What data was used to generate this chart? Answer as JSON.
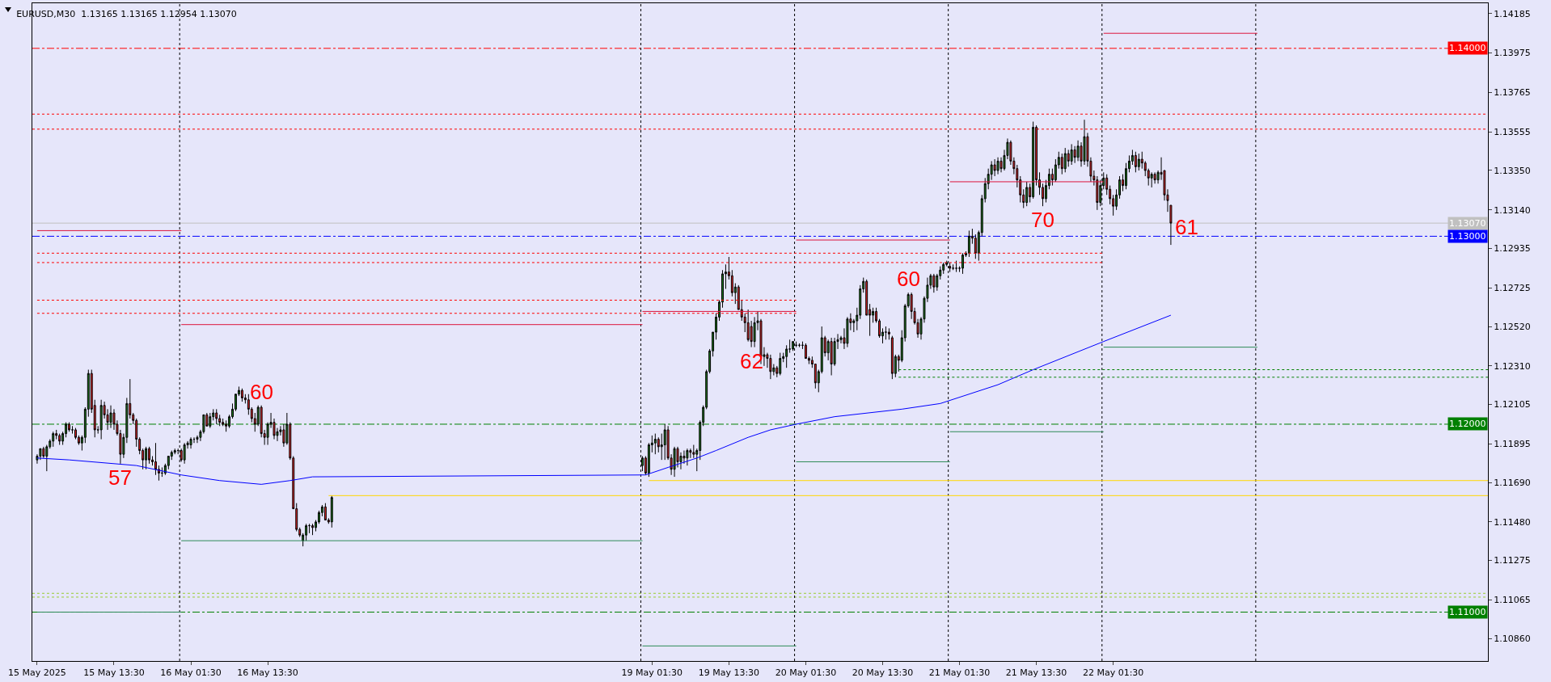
{
  "chart_data": {
    "type": "candlestick",
    "title": "EURUSD,M30  1.13165 1.13165 1.12954 1.13070",
    "x": [
      "2025-05-15T01:30",
      "2025-05-15T02:00",
      "2025-05-15T02:30",
      "2025-05-15T03:00",
      "2025-05-15T03:30",
      "2025-05-15T04:00",
      "2025-05-15T04:30",
      "2025-05-15T05:00",
      "2025-05-15T05:30",
      "2025-05-15T06:00",
      "2025-05-15T06:30",
      "2025-05-15T07:00",
      "2025-05-15T07:30",
      "2025-05-15T08:00",
      "2025-05-15T08:30",
      "2025-05-15T09:00",
      "2025-05-15T09:30",
      "2025-05-15T10:00",
      "2025-05-15T10:30",
      "2025-05-15T11:00",
      "2025-05-15T11:30",
      "2025-05-15T12:00",
      "2025-05-15T12:30",
      "2025-05-15T13:00",
      "2025-05-15T13:30",
      "2025-05-15T14:00",
      "2025-05-15T14:30",
      "2025-05-15T15:00",
      "2025-05-15T15:30",
      "2025-05-15T16:00",
      "2025-05-15T16:30",
      "2025-05-15T17:00",
      "2025-05-15T17:30",
      "2025-05-15T18:00",
      "2025-05-15T18:30",
      "2025-05-15T19:00",
      "2025-05-15T19:30",
      "2025-05-15T20:00",
      "2025-05-15T20:30",
      "2025-05-15T21:00",
      "2025-05-15T21:30",
      "2025-05-15T22:00",
      "2025-05-15T22:30",
      "2025-05-15T23:00",
      "2025-05-15T23:30",
      "2025-05-16T00:00",
      "2025-05-16T00:30",
      "2025-05-16T01:00",
      "2025-05-16T01:30",
      "2025-05-16T02:00",
      "2025-05-16T02:30",
      "2025-05-16T03:00",
      "2025-05-16T03:30",
      "2025-05-16T04:00",
      "2025-05-16T04:30",
      "2025-05-16T05:00",
      "2025-05-16T05:30",
      "2025-05-16T06:00",
      "2025-05-16T06:30",
      "2025-05-16T07:00",
      "2025-05-16T07:30",
      "2025-05-16T08:00",
      "2025-05-16T08:30",
      "2025-05-16T09:00",
      "2025-05-16T09:30",
      "2025-05-16T10:00",
      "2025-05-16T10:30",
      "2025-05-16T11:00",
      "2025-05-16T11:30",
      "2025-05-16T12:00",
      "2025-05-16T12:30",
      "2025-05-16T13:00",
      "2025-05-16T13:30",
      "2025-05-16T14:00",
      "2025-05-16T14:30",
      "2025-05-16T15:00",
      "2025-05-16T15:30",
      "2025-05-16T16:00",
      "2025-05-16T16:30",
      "2025-05-16T17:00",
      "2025-05-16T17:30",
      "2025-05-16T18:00",
      "2025-05-16T18:30",
      "2025-05-16T19:00",
      "2025-05-16T19:30",
      "2025-05-16T20:00",
      "2025-05-16T20:30",
      "2025-05-16T21:00",
      "2025-05-16T21:30",
      "2025-05-16T22:00",
      "2025-05-16T22:30",
      "2025-05-16T23:00",
      "2025-05-16T23:30",
      "2025-05-19T00:00",
      "2025-05-19T00:30",
      "2025-05-19T01:00",
      "2025-05-19T01:30",
      "2025-05-19T02:00",
      "2025-05-19T02:30",
      "2025-05-19T03:00",
      "2025-05-19T03:30",
      "2025-05-19T04:00",
      "2025-05-19T04:30",
      "2025-05-19T05:00",
      "2025-05-19T05:30",
      "2025-05-19T06:00",
      "2025-05-19T06:30",
      "2025-05-19T07:00",
      "2025-05-19T07:30",
      "2025-05-19T08:00",
      "2025-05-19T08:30",
      "2025-05-19T09:00",
      "2025-05-19T09:30",
      "2025-05-19T10:00",
      "2025-05-19T10:30",
      "2025-05-19T11:00",
      "2025-05-19T11:30",
      "2025-05-19T12:00",
      "2025-05-19T12:30",
      "2025-05-19T13:00",
      "2025-05-19T13:30",
      "2025-05-19T14:00",
      "2025-05-19T14:30",
      "2025-05-19T15:00",
      "2025-05-19T15:30",
      "2025-05-19T16:00",
      "2025-05-19T16:30",
      "2025-05-19T17:00",
      "2025-05-19T17:30",
      "2025-05-19T18:00",
      "2025-05-19T18:30",
      "2025-05-19T19:00",
      "2025-05-19T19:30",
      "2025-05-19T20:00",
      "2025-05-19T20:30",
      "2025-05-19T21:00",
      "2025-05-19T21:30",
      "2025-05-19T22:00",
      "2025-05-19T22:30",
      "2025-05-19T23:00",
      "2025-05-19T23:30",
      "2025-05-20T00:00",
      "2025-05-20T00:30",
      "2025-05-20T01:00",
      "2025-05-20T01:30",
      "2025-05-20T02:00",
      "2025-05-20T02:30",
      "2025-05-20T03:00",
      "2025-05-20T03:30",
      "2025-05-20T04:00",
      "2025-05-20T04:30",
      "2025-05-20T05:00",
      "2025-05-20T05:30",
      "2025-05-20T06:00",
      "2025-05-20T06:30",
      "2025-05-20T07:00",
      "2025-05-20T07:30",
      "2025-05-20T08:00",
      "2025-05-20T08:30",
      "2025-05-20T09:00",
      "2025-05-20T09:30",
      "2025-05-20T10:00",
      "2025-05-20T10:30",
      "2025-05-20T11:00",
      "2025-05-20T11:30",
      "2025-05-20T12:00",
      "2025-05-20T12:30",
      "2025-05-20T13:00",
      "2025-05-20T13:30",
      "2025-05-20T14:00",
      "2025-05-20T14:30",
      "2025-05-20T15:00",
      "2025-05-20T15:30",
      "2025-05-20T16:00",
      "2025-05-20T16:30",
      "2025-05-20T17:00",
      "2025-05-20T17:30",
      "2025-05-20T18:00",
      "2025-05-20T18:30",
      "2025-05-20T19:00",
      "2025-05-20T19:30",
      "2025-05-20T20:00",
      "2025-05-20T20:30",
      "2025-05-20T21:00",
      "2025-05-20T21:30",
      "2025-05-20T22:00",
      "2025-05-20T22:30",
      "2025-05-20T23:00",
      "2025-05-20T23:30",
      "2025-05-21T00:00",
      "2025-05-21T00:30",
      "2025-05-21T01:00",
      "2025-05-21T01:30",
      "2025-05-21T02:00",
      "2025-05-21T02:30",
      "2025-05-21T03:00",
      "2025-05-21T03:30",
      "2025-05-21T04:00",
      "2025-05-21T04:30",
      "2025-05-21T05:00",
      "2025-05-21T05:30",
      "2025-05-21T06:00",
      "2025-05-21T06:30",
      "2025-05-21T07:00",
      "2025-05-21T07:30",
      "2025-05-21T08:00",
      "2025-05-21T08:30",
      "2025-05-21T09:00",
      "2025-05-21T09:30",
      "2025-05-21T10:00",
      "2025-05-21T10:30",
      "2025-05-21T11:00",
      "2025-05-21T11:30",
      "2025-05-21T12:00",
      "2025-05-21T12:30",
      "2025-05-21T13:00",
      "2025-05-21T13:30",
      "2025-05-21T14:00",
      "2025-05-21T14:30",
      "2025-05-21T15:00",
      "2025-05-21T15:30",
      "2025-05-21T16:00",
      "2025-05-21T16:30",
      "2025-05-21T17:00",
      "2025-05-21T17:30",
      "2025-05-21T18:00",
      "2025-05-21T18:30",
      "2025-05-21T19:00",
      "2025-05-21T19:30",
      "2025-05-21T20:00",
      "2025-05-21T20:30",
      "2025-05-21T21:00",
      "2025-05-21T21:30",
      "2025-05-21T22:00",
      "2025-05-21T22:30",
      "2025-05-21T23:00",
      "2025-05-21T23:30",
      "2025-05-22T00:00",
      "2025-05-22T00:30",
      "2025-05-22T01:00",
      "2025-05-22T01:30",
      "2025-05-22T02:00",
      "2025-05-22T02:30",
      "2025-05-22T03:00",
      "2025-05-22T03:30",
      "2025-05-22T04:00",
      "2025-05-22T04:30",
      "2025-05-22T05:00",
      "2025-05-22T05:30",
      "2025-05-22T06:00",
      "2025-05-22T06:30",
      "2025-05-22T07:00",
      "2025-05-22T07:30",
      "2025-05-22T08:00",
      "2025-05-22T08:30",
      "2025-05-22T09:00",
      "2025-05-22T09:30",
      "2025-05-22T10:00",
      "2025-05-22T10:30"
    ],
    "ohlc": [
      [
        1.1181,
        1.1184,
        1.1179,
        1.1183
      ],
      [
        1.1183,
        1.1187,
        1.1181,
        1.1187
      ],
      [
        1.1187,
        1.1188,
        1.1182,
        1.1183
      ],
      [
        1.1183,
        1.1189,
        1.1175,
        1.1188
      ],
      [
        1.1188,
        1.1192,
        1.1187,
        1.1191
      ],
      [
        1.1191,
        1.1196,
        1.1188,
        1.1195
      ],
      [
        1.1195,
        1.1197,
        1.1192,
        1.1194
      ],
      [
        1.1194,
        1.1195,
        1.1189,
        1.1191
      ],
      [
        1.1191,
        1.1196,
        1.1189,
        1.1195
      ],
      [
        1.1195,
        1.1201,
        1.1193,
        1.12
      ],
      [
        1.12,
        1.1201,
        1.1196,
        1.1197
      ],
      [
        1.1197,
        1.1199,
        1.1195,
        1.1197
      ],
      [
        1.1197,
        1.1198,
        1.1192,
        1.1193
      ],
      [
        1.1193,
        1.1194,
        1.1189,
        1.119
      ],
      [
        1.119,
        1.1194,
        1.1186,
        1.1193
      ],
      [
        1.1193,
        1.1209,
        1.119,
        1.1208
      ],
      [
        1.1208,
        1.1229,
        1.1204,
        1.1227
      ],
      [
        1.1227,
        1.1229,
        1.1206,
        1.1208
      ],
      [
        1.121,
        1.1213,
        1.1193,
        1.1197
      ],
      [
        1.1197,
        1.1199,
        1.1195,
        1.1197
      ],
      [
        1.1197,
        1.1213,
        1.1192,
        1.121
      ],
      [
        1.121,
        1.1212,
        1.1203,
        1.1205
      ],
      [
        1.1205,
        1.1208,
        1.1197,
        1.1201
      ],
      [
        1.1201,
        1.121,
        1.1198,
        1.1206
      ],
      [
        1.1206,
        1.1208,
        1.1197,
        1.12
      ],
      [
        1.12,
        1.1202,
        1.1194,
        1.1195
      ],
      [
        1.1195,
        1.1197,
        1.1179,
        1.1184
      ],
      [
        1.1184,
        1.1195,
        1.1182,
        1.1193
      ],
      [
        1.1193,
        1.1214,
        1.119,
        1.1211
      ],
      [
        1.1211,
        1.1224,
        1.1203,
        1.1205
      ],
      [
        1.1205,
        1.1206,
        1.12,
        1.1202
      ],
      [
        1.1202,
        1.1203,
        1.1188,
        1.1192
      ],
      [
        1.1192,
        1.1193,
        1.1184,
        1.1186
      ],
      [
        1.1186,
        1.1187,
        1.1176,
        1.1181
      ],
      [
        1.1181,
        1.1188,
        1.1176,
        1.1187
      ],
      [
        1.1187,
        1.1188,
        1.1179,
        1.1181
      ],
      [
        1.1181,
        1.1183,
        1.1178,
        1.118
      ],
      [
        1.118,
        1.119,
        1.1173,
        1.1176
      ],
      [
        1.1176,
        1.1178,
        1.117,
        1.1174
      ],
      [
        1.1174,
        1.1177,
        1.1172,
        1.1174
      ],
      [
        1.1174,
        1.1179,
        1.1173,
        1.1178
      ],
      [
        1.1178,
        1.1183,
        1.1176,
        1.1183
      ],
      [
        1.1183,
        1.1186,
        1.1181,
        1.1185
      ],
      [
        1.1185,
        1.1187,
        1.1184,
        1.1186
      ],
      [
        1.1186,
        1.1187,
        1.1184,
        1.1186
      ],
      [
        1.1186,
        1.1187,
        1.118,
        1.1181
      ],
      [
        1.1181,
        1.119,
        1.1179,
        1.1189
      ],
      [
        1.1189,
        1.1191,
        1.1187,
        1.119
      ],
      [
        1.1189,
        1.1193,
        1.1187,
        1.1192
      ],
      [
        1.1192,
        1.1193,
        1.119,
        1.1192
      ],
      [
        1.1192,
        1.1194,
        1.119,
        1.1193
      ],
      [
        1.1193,
        1.1197,
        1.1191,
        1.1196
      ],
      [
        1.1196,
        1.1205,
        1.1195,
        1.1205
      ],
      [
        1.1205,
        1.1206,
        1.1199,
        1.1199
      ],
      [
        1.1199,
        1.1206,
        1.1198,
        1.1204
      ],
      [
        1.1204,
        1.1208,
        1.1202,
        1.1206
      ],
      [
        1.1206,
        1.1208,
        1.12,
        1.1203
      ],
      [
        1.1203,
        1.1205,
        1.1199,
        1.1201
      ],
      [
        1.1201,
        1.1203,
        1.1199,
        1.12
      ],
      [
        1.12,
        1.1202,
        1.1196,
        1.1199
      ],
      [
        1.1199,
        1.1205,
        1.1198,
        1.1204
      ],
      [
        1.1204,
        1.1211,
        1.1203,
        1.1208
      ],
      [
        1.1208,
        1.1216,
        1.1207,
        1.1216
      ],
      [
        1.1216,
        1.122,
        1.1215,
        1.1218
      ],
      [
        1.1218,
        1.1219,
        1.1212,
        1.1214
      ],
      [
        1.1214,
        1.1216,
        1.1211,
        1.1213
      ],
      [
        1.1213,
        1.1216,
        1.1205,
        1.1208
      ],
      [
        1.1208,
        1.1209,
        1.1201,
        1.1203
      ],
      [
        1.1203,
        1.1206,
        1.1196,
        1.12
      ],
      [
        1.12,
        1.121,
        1.1199,
        1.1209
      ],
      [
        1.1209,
        1.121,
        1.1193,
        1.1195
      ],
      [
        1.1195,
        1.1197,
        1.1189,
        1.1193
      ],
      [
        1.1193,
        1.1201,
        1.1189,
        1.12
      ],
      [
        1.12,
        1.1206,
        1.1198,
        1.1201
      ],
      [
        1.1201,
        1.1203,
        1.1192,
        1.1194
      ],
      [
        1.1194,
        1.1198,
        1.1191,
        1.1196
      ],
      [
        1.1196,
        1.1199,
        1.1194,
        1.1197
      ],
      [
        1.1197,
        1.12,
        1.1188,
        1.119
      ],
      [
        1.119,
        1.1206,
        1.1189,
        1.12
      ],
      [
        1.12,
        1.1201,
        1.1181,
        1.1182
      ],
      [
        1.1182,
        1.1183,
        1.1155,
        1.1155
      ],
      [
        1.1155,
        1.1158,
        1.1143,
        1.1144
      ],
      [
        1.1144,
        1.1145,
        1.114,
        1.1141
      ],
      [
        1.1138,
        1.1142,
        1.1135,
        1.1141
      ],
      [
        1.1141,
        1.1147,
        1.1138,
        1.1146
      ],
      [
        1.1146,
        1.1147,
        1.1142,
        1.1146
      ],
      [
        1.1146,
        1.1147,
        1.1141,
        1.1145
      ],
      [
        1.1145,
        1.1149,
        1.1143,
        1.1148
      ],
      [
        1.1148,
        1.1154,
        1.1147,
        1.1153
      ],
      [
        1.1153,
        1.1157,
        1.1151,
        1.1156
      ],
      [
        1.1156,
        1.1158,
        1.1149,
        1.1149
      ],
      [
        1.1149,
        1.115,
        1.1147,
        1.1148
      ],
      [
        1.1148,
        1.1162,
        1.1145,
        1.1161
      ],
      [
        1.1178,
        1.1183,
        1.1175,
        1.1182
      ],
      [
        1.1182,
        1.1183,
        1.1173,
        1.1174
      ],
      [
        1.1174,
        1.119,
        1.1172,
        1.1189
      ],
      [
        1.1189,
        1.1194,
        1.1185,
        1.119
      ],
      [
        1.119,
        1.1195,
        1.1184,
        1.1192
      ],
      [
        1.1192,
        1.1193,
        1.1185,
        1.1188
      ],
      [
        1.1188,
        1.1195,
        1.1181,
        1.1189
      ],
      [
        1.1189,
        1.12,
        1.1181,
        1.1197
      ],
      [
        1.1197,
        1.1199,
        1.1181,
        1.1182
      ],
      [
        1.1182,
        1.1184,
        1.1173,
        1.1176
      ],
      [
        1.1176,
        1.1188,
        1.1172,
        1.1187
      ],
      [
        1.1187,
        1.1188,
        1.1177,
        1.118
      ],
      [
        1.118,
        1.1185,
        1.1176,
        1.1183
      ],
      [
        1.1183,
        1.1186,
        1.1179,
        1.1182
      ],
      [
        1.1182,
        1.1187,
        1.1178,
        1.1186
      ],
      [
        1.1186,
        1.1187,
        1.1182,
        1.1185
      ],
      [
        1.1185,
        1.1189,
        1.1182,
        1.1184
      ],
      [
        1.1184,
        1.1187,
        1.1175,
        1.1186
      ],
      [
        1.1186,
        1.1202,
        1.1181,
        1.1201
      ],
      [
        1.1201,
        1.121,
        1.1199,
        1.1209
      ],
      [
        1.1209,
        1.1229,
        1.1208,
        1.1228
      ],
      [
        1.1228,
        1.124,
        1.1227,
        1.1239
      ],
      [
        1.1239,
        1.1249,
        1.1236,
        1.1249
      ],
      [
        1.1249,
        1.1259,
        1.1245,
        1.1257
      ],
      [
        1.1257,
        1.1266,
        1.1255,
        1.1265
      ],
      [
        1.1265,
        1.1282,
        1.1262,
        1.128
      ],
      [
        1.128,
        1.1285,
        1.1272,
        1.1281
      ],
      [
        1.1281,
        1.1289,
        1.1277,
        1.1279
      ],
      [
        1.1279,
        1.1282,
        1.1268,
        1.127
      ],
      [
        1.127,
        1.1275,
        1.1264,
        1.1273
      ],
      [
        1.1273,
        1.1274,
        1.1261,
        1.1261
      ],
      [
        1.1261,
        1.1266,
        1.1255,
        1.1257
      ],
      [
        1.1257,
        1.1259,
        1.1249,
        1.1254
      ],
      [
        1.1254,
        1.1261,
        1.1244,
        1.1245
      ],
      [
        1.1252,
        1.1255,
        1.1241,
        1.1244
      ],
      [
        1.1244,
        1.1257,
        1.1241,
        1.1254
      ],
      [
        1.1254,
        1.126,
        1.125,
        1.1255
      ],
      [
        1.1255,
        1.1256,
        1.1232,
        1.1236
      ],
      [
        1.1236,
        1.1241,
        1.1231,
        1.1237
      ],
      [
        1.1237,
        1.1238,
        1.123,
        1.1235
      ],
      [
        1.1235,
        1.1237,
        1.1224,
        1.1228
      ],
      [
        1.1228,
        1.1232,
        1.1226,
        1.123
      ],
      [
        1.123,
        1.1231,
        1.1225,
        1.1227
      ],
      [
        1.1227,
        1.1238,
        1.1226,
        1.1235
      ],
      [
        1.1235,
        1.1238,
        1.1233,
        1.1236
      ],
      [
        1.1236,
        1.1242,
        1.123,
        1.124
      ],
      [
        1.124,
        1.1245,
        1.1238,
        1.124
      ],
      [
        1.124,
        1.1244,
        1.1239,
        1.1244
      ],
      [
        1.1242,
        1.1244,
        1.1241,
        1.1242
      ],
      [
        1.1242,
        1.1243,
        1.1241,
        1.1242
      ],
      [
        1.1242,
        1.1244,
        1.124,
        1.1242
      ],
      [
        1.1242,
        1.1243,
        1.1235,
        1.1235
      ],
      [
        1.1235,
        1.1236,
        1.1232,
        1.1234
      ],
      [
        1.1234,
        1.1236,
        1.123,
        1.1232
      ],
      [
        1.1232,
        1.1232,
        1.1219,
        1.1222
      ],
      [
        1.1222,
        1.1229,
        1.1217,
        1.1228
      ],
      [
        1.1228,
        1.1252,
        1.1227,
        1.1246
      ],
      [
        1.1246,
        1.1247,
        1.1236,
        1.1238
      ],
      [
        1.1238,
        1.1245,
        1.1234,
        1.1244
      ],
      [
        1.1244,
        1.1246,
        1.1226,
        1.1232
      ],
      [
        1.1232,
        1.1246,
        1.1231,
        1.1244
      ],
      [
        1.1244,
        1.1248,
        1.124,
        1.1245
      ],
      [
        1.1245,
        1.1247,
        1.1243,
        1.1246
      ],
      [
        1.1246,
        1.1251,
        1.124,
        1.1243
      ],
      [
        1.1243,
        1.1257,
        1.1241,
        1.1256
      ],
      [
        1.1256,
        1.1259,
        1.125,
        1.1254
      ],
      [
        1.1254,
        1.1256,
        1.1249,
        1.1255
      ],
      [
        1.1255,
        1.1262,
        1.125,
        1.1258
      ],
      [
        1.1258,
        1.1274,
        1.1256,
        1.1272
      ],
      [
        1.1272,
        1.1278,
        1.127,
        1.1276
      ],
      [
        1.1276,
        1.1277,
        1.1258,
        1.1258
      ],
      [
        1.1261,
        1.1264,
        1.1247,
        1.1258
      ],
      [
        1.1258,
        1.1262,
        1.1254,
        1.126
      ],
      [
        1.126,
        1.1262,
        1.1254,
        1.1255
      ],
      [
        1.1255,
        1.1256,
        1.1246,
        1.1247
      ],
      [
        1.1247,
        1.1251,
        1.1243,
        1.1249
      ],
      [
        1.1249,
        1.1252,
        1.1245,
        1.1249
      ],
      [
        1.1249,
        1.1251,
        1.1245,
        1.1248
      ],
      [
        1.1246,
        1.1247,
        1.1224,
        1.1227
      ],
      [
        1.1227,
        1.1237,
        1.1225,
        1.1236
      ],
      [
        1.1236,
        1.1237,
        1.1228,
        1.1234
      ],
      [
        1.1234,
        1.125,
        1.1233,
        1.1246
      ],
      [
        1.1246,
        1.1264,
        1.1244,
        1.1263
      ],
      [
        1.1263,
        1.127,
        1.1262,
        1.1269
      ],
      [
        1.1269,
        1.127,
        1.1256,
        1.126
      ],
      [
        1.126,
        1.1262,
        1.1253,
        1.1254
      ],
      [
        1.1254,
        1.1256,
        1.1246,
        1.1248
      ],
      [
        1.1248,
        1.1257,
        1.1245,
        1.1256
      ],
      [
        1.1256,
        1.1268,
        1.1254,
        1.1267
      ],
      [
        1.1267,
        1.1278,
        1.1265,
        1.1274
      ],
      [
        1.1274,
        1.128,
        1.1272,
        1.1279
      ],
      [
        1.1279,
        1.128,
        1.127,
        1.1273
      ],
      [
        1.1273,
        1.128,
        1.1271,
        1.1279
      ],
      [
        1.1279,
        1.1284,
        1.1277,
        1.1282
      ],
      [
        1.1282,
        1.1286,
        1.128,
        1.1285
      ],
      [
        1.1285,
        1.1287,
        1.1284,
        1.1286
      ],
      [
        1.1284,
        1.1286,
        1.1281,
        1.1283
      ],
      [
        1.1283,
        1.1285,
        1.1282,
        1.1283
      ],
      [
        1.1283,
        1.1287,
        1.1281,
        1.1283
      ],
      [
        1.1283,
        1.1284,
        1.1281,
        1.1283
      ],
      [
        1.1283,
        1.1291,
        1.128,
        1.129
      ],
      [
        1.129,
        1.1292,
        1.1289,
        1.1291
      ],
      [
        1.1291,
        1.1303,
        1.1289,
        1.13
      ],
      [
        1.13,
        1.1304,
        1.1296,
        1.1299
      ],
      [
        1.1299,
        1.1301,
        1.1288,
        1.1291
      ],
      [
        1.1291,
        1.1303,
        1.1287,
        1.1302
      ],
      [
        1.1302,
        1.1322,
        1.13,
        1.132
      ],
      [
        1.132,
        1.1331,
        1.1318,
        1.1328
      ],
      [
        1.1328,
        1.1336,
        1.1325,
        1.1333
      ],
      [
        1.1333,
        1.134,
        1.133,
        1.1338
      ],
      [
        1.1338,
        1.1341,
        1.1332,
        1.1335
      ],
      [
        1.1335,
        1.1342,
        1.1333,
        1.134
      ],
      [
        1.134,
        1.1342,
        1.1334,
        1.1336
      ],
      [
        1.1336,
        1.1346,
        1.1335,
        1.1343
      ],
      [
        1.1343,
        1.1352,
        1.1341,
        1.135
      ],
      [
        1.135,
        1.1351,
        1.1338,
        1.134
      ],
      [
        1.134,
        1.1342,
        1.1333,
        1.1336
      ],
      [
        1.1336,
        1.1338,
        1.1326,
        1.133
      ],
      [
        1.133,
        1.1332,
        1.1318,
        1.1322
      ],
      [
        1.1322,
        1.1325,
        1.1315,
        1.1318
      ],
      [
        1.1318,
        1.1329,
        1.1316,
        1.1326
      ],
      [
        1.1326,
        1.1328,
        1.1318,
        1.1321
      ],
      [
        1.1321,
        1.1361,
        1.132,
        1.1358
      ],
      [
        1.1358,
        1.1359,
        1.1327,
        1.133
      ],
      [
        1.133,
        1.1334,
        1.1322,
        1.1326
      ],
      [
        1.1326,
        1.1328,
        1.1316,
        1.132
      ],
      [
        1.132,
        1.133,
        1.1318,
        1.1327
      ],
      [
        1.1327,
        1.1336,
        1.1325,
        1.1333
      ],
      [
        1.1333,
        1.1336,
        1.1327,
        1.133
      ],
      [
        1.133,
        1.1341,
        1.1329,
        1.1338
      ],
      [
        1.1338,
        1.1345,
        1.1336,
        1.1342
      ],
      [
        1.1342,
        1.1344,
        1.1333,
        1.1336
      ],
      [
        1.1336,
        1.1347,
        1.1334,
        1.1344
      ],
      [
        1.1344,
        1.1346,
        1.1337,
        1.134
      ],
      [
        1.134,
        1.1349,
        1.1338,
        1.1346
      ],
      [
        1.1346,
        1.1348,
        1.1339,
        1.1342
      ],
      [
        1.1342,
        1.1351,
        1.134,
        1.1348
      ],
      [
        1.1348,
        1.135,
        1.1337,
        1.134
      ],
      [
        1.134,
        1.1362,
        1.1338,
        1.1353
      ],
      [
        1.1353,
        1.1355,
        1.1337,
        1.134
      ],
      [
        1.134,
        1.1342,
        1.1329,
        1.1332
      ],
      [
        1.1332,
        1.1335,
        1.1327,
        1.133
      ],
      [
        1.133,
        1.1332,
        1.1314,
        1.1318
      ],
      [
        1.1318,
        1.133,
        1.1316,
        1.1327
      ],
      [
        1.1327,
        1.1334,
        1.1325,
        1.1331
      ],
      [
        1.1331,
        1.1333,
        1.1322,
        1.1325
      ],
      [
        1.1325,
        1.1327,
        1.1317,
        1.132
      ],
      [
        1.132,
        1.1322,
        1.1311,
        1.1316
      ],
      [
        1.1316,
        1.1325,
        1.1314,
        1.1322
      ],
      [
        1.1322,
        1.1332,
        1.132,
        1.133
      ],
      [
        1.133,
        1.1333,
        1.1324,
        1.1327
      ],
      [
        1.1327,
        1.1339,
        1.1325,
        1.1336
      ],
      [
        1.1336,
        1.1343,
        1.1334,
        1.134
      ],
      [
        1.134,
        1.1346,
        1.1338,
        1.1343
      ],
      [
        1.1343,
        1.1345,
        1.1334,
        1.1337
      ],
      [
        1.1337,
        1.1344,
        1.1335,
        1.1341
      ],
      [
        1.1341,
        1.1345,
        1.1336,
        1.1339
      ],
      [
        1.1339,
        1.134,
        1.1332,
        1.1335
      ],
      [
        1.1335,
        1.1336,
        1.1327,
        1.1331
      ],
      [
        1.1331,
        1.1334,
        1.1326,
        1.1333
      ],
      [
        1.1333,
        1.1334,
        1.1328,
        1.133
      ],
      [
        1.133,
        1.1335,
        1.1328,
        1.1334
      ],
      [
        1.1334,
        1.1342,
        1.133,
        1.1333
      ],
      [
        1.1335,
        1.1335,
        1.1319,
        1.1322
      ],
      [
        1.1322,
        1.1325,
        1.1313,
        1.1319
      ],
      [
        1.13165,
        1.13165,
        1.12954,
        1.1307
      ]
    ],
    "series": [
      {
        "type": "line",
        "color": "#0000ff",
        "x": [
          "2025-05-15T01:30",
          "2025-05-15T06:30",
          "2025-05-15T17:00",
          "2025-05-16T00:00",
          "2025-05-16T06:00",
          "2025-05-16T12:30",
          "2025-05-16T17:00",
          "2025-05-16T20:30",
          "2025-05-19T00:30",
          "2025-05-19T04:00",
          "2025-05-19T08:30",
          "2025-05-19T11:30",
          "2025-05-19T16:30",
          "2025-05-19T20:00",
          "2025-05-20T00:00",
          "2025-05-20T06:00",
          "2025-05-20T16:30",
          "2025-05-20T22:30",
          "2025-05-21T07:30",
          "2025-05-21T13:00",
          "2025-05-22T00:00",
          "2025-05-22T10:30"
        ],
        "values": [
          1.1182,
          1.1181,
          1.1178,
          1.1173,
          1.117,
          1.1168,
          1.117,
          1.1172,
          1.1173,
          1.1177,
          1.1182,
          1.1186,
          1.1193,
          1.1197,
          1.12,
          1.1204,
          1.1208,
          1.1211,
          1.1221,
          1.1229,
          1.1244,
          1.1258
        ]
      },
      {
        "type": "line",
        "color": "#dc143c",
        "line_style": "solid",
        "x": [
          "2025-05-15T01:30",
          "2025-05-16T00:00"
        ],
        "values": [
          1.1303,
          1.1303
        ]
      },
      {
        "type": "line",
        "color": "#dc143c",
        "line_style": "solid",
        "x": [
          "2025-05-16T00:00",
          "2025-05-19T00:00"
        ],
        "values": [
          1.1253,
          1.1253
        ]
      },
      {
        "type": "line",
        "color": "#dc143c",
        "line_style": "solid",
        "x": [
          "2025-05-19T00:00",
          "2025-05-20T00:00"
        ],
        "values": [
          1.126,
          1.126
        ]
      },
      {
        "type": "line",
        "color": "#dc143c",
        "line_style": "solid",
        "x": [
          "2025-05-20T00:00",
          "2025-05-21T00:00"
        ],
        "values": [
          1.1298,
          1.1298
        ]
      },
      {
        "type": "line",
        "color": "#dc143c",
        "line_style": "solid",
        "x": [
          "2025-05-21T00:00",
          "2025-05-22T00:00"
        ],
        "values": [
          1.1329,
          1.1329
        ]
      },
      {
        "type": "line",
        "color": "#dc143c",
        "line_style": "solid",
        "x": [
          "2025-05-22T00:00",
          "2025-05-23T00:00"
        ],
        "values": [
          1.1408,
          1.1408
        ]
      },
      {
        "type": "line",
        "color": "#2e8b57",
        "line_style": "solid",
        "x": [
          "2025-05-15T01:30",
          "2025-05-16T00:00"
        ],
        "values": [
          1.11,
          1.11
        ]
      },
      {
        "type": "line",
        "color": "#2e8b57",
        "line_style": "solid",
        "x": [
          "2025-05-16T00:00",
          "2025-05-19T00:00"
        ],
        "values": [
          1.1138,
          1.1138
        ]
      },
      {
        "type": "line",
        "color": "#2e8b57",
        "line_style": "solid",
        "x": [
          "2025-05-19T00:00",
          "2025-05-20T00:00"
        ],
        "values": [
          1.1082,
          1.1082
        ]
      },
      {
        "type": "line",
        "color": "#2e8b57",
        "line_style": "solid",
        "x": [
          "2025-05-20T00:00",
          "2025-05-21T00:00"
        ],
        "values": [
          1.118,
          1.118
        ]
      },
      {
        "type": "line",
        "color": "#2e8b57",
        "line_style": "solid",
        "x": [
          "2025-05-21T00:00",
          "2025-05-22T00:00"
        ],
        "values": [
          1.1196,
          1.1196
        ]
      },
      {
        "type": "line",
        "color": "#2e8b57",
        "line_style": "solid",
        "x": [
          "2025-05-22T00:00",
          "2025-05-23T00:00"
        ],
        "values": [
          1.1241,
          1.1241
        ]
      },
      {
        "type": "line",
        "color": "#ff0000",
        "line_style": "dotted",
        "x": [
          "2025-05-15T01:30",
          "2025-05-22T00:00"
        ],
        "values": [
          1.1291,
          1.1291
        ]
      },
      {
        "type": "line",
        "color": "#ff0000",
        "line_style": "dotted",
        "x": [
          "2025-05-15T01:30",
          "2025-05-22T00:00"
        ],
        "values": [
          1.1286,
          1.1286
        ]
      },
      {
        "type": "line",
        "color": "#ff0000",
        "line_style": "dotted",
        "x": [
          "2025-05-15T01:30",
          "2025-05-20T00:00"
        ],
        "values": [
          1.1266,
          1.1266
        ]
      },
      {
        "type": "line",
        "color": "#ff0000",
        "line_style": "dotted",
        "x": [
          "2025-05-15T01:30",
          "2025-05-20T00:00"
        ],
        "values": [
          1.1259,
          1.1259
        ]
      },
      {
        "type": "line",
        "color": "#008000",
        "line_style": "dotted",
        "x": [
          "2025-05-20T16:00",
          "2025-05-24T12:00"
        ],
        "values": [
          1.1229,
          1.1229
        ]
      },
      {
        "type": "line",
        "color": "#008000",
        "line_style": "dotted",
        "x": [
          "2025-05-20T16:00",
          "2025-05-24T12:00"
        ],
        "values": [
          1.1225,
          1.1225
        ]
      },
      {
        "type": "line",
        "color": "#ffd700",
        "line_style": "solid",
        "x": [
          "2025-05-19T01:00",
          "2025-05-24T12:00"
        ],
        "values": [
          1.117,
          1.117
        ]
      },
      {
        "type": "line",
        "color": "#ffd700",
        "line_style": "solid",
        "x": [
          "2025-05-16T23:00",
          "2025-05-24T12:00"
        ],
        "values": [
          1.1162,
          1.1162
        ]
      }
    ],
    "ref_lines": [
      {
        "axis": "y",
        "value": 1.14,
        "label": "1.14000",
        "color": "#ff0000",
        "line_style": "dashdot"
      },
      {
        "axis": "y",
        "value": 1.1365,
        "color": "#ff0000",
        "line_style": "dotted"
      },
      {
        "axis": "y",
        "value": 1.1357,
        "color": "#ff0000",
        "line_style": "dotted"
      },
      {
        "axis": "y",
        "value": 1.1307,
        "label": "1.13070",
        "color": "#c0c0c0",
        "line_style": "solid"
      },
      {
        "axis": "y",
        "value": 1.13,
        "label": "1.13000",
        "color": "#0000ff",
        "line_style": "dashdot"
      },
      {
        "axis": "y",
        "value": 1.12,
        "label": "1.12000",
        "color": "#008000",
        "line_style": "dashdot"
      },
      {
        "axis": "y",
        "value": 1.111,
        "color": "#9acd32",
        "line_style": "dotted"
      },
      {
        "axis": "y",
        "value": 1.1108,
        "color": "#9acd32",
        "line_style": "dotted"
      },
      {
        "axis": "y",
        "value": 1.11,
        "label": "1.11000",
        "color": "#008000",
        "line_style": "dashdot"
      },
      {
        "axis": "x",
        "value": "2025-05-15T23:45",
        "color": "#000000",
        "line_style": "dotted"
      },
      {
        "axis": "x",
        "value": "2025-05-18T23:45",
        "color": "#000000",
        "line_style": "dotted"
      },
      {
        "axis": "x",
        "value": "2025-05-19T23:45",
        "color": "#000000",
        "line_style": "dotted"
      },
      {
        "axis": "x",
        "value": "2025-05-20T23:45",
        "color": "#000000",
        "line_style": "dotted"
      },
      {
        "axis": "x",
        "value": "2025-05-21T23:45",
        "color": "#000000",
        "line_style": "dotted"
      },
      {
        "axis": "x",
        "value": "2025-05-22T23:45",
        "color": "#000000",
        "line_style": "dotted"
      }
    ],
    "annotations": [
      {
        "text": "57",
        "x": "2025-05-15T14:30",
        "y": 1.1179
      },
      {
        "text": "60",
        "x": "2025-05-16T12:30",
        "y": 1.121
      },
      {
        "text": "62",
        "x": "2025-05-19T17:00",
        "y": 1.1241
      },
      {
        "text": "60",
        "x": "2025-05-20T17:30",
        "y": 1.127
      },
      {
        "text": "70",
        "x": "2025-05-21T14:30",
        "y": 1.1316
      },
      {
        "text": "61",
        "x": "2025-05-22T13:00",
        "y": 1.1305
      }
    ],
    "xlim": [
      "2025-05-15T00:45",
      "2025-05-24T12:00"
    ],
    "xticks": [
      {
        "value": "2025-05-15T01:30",
        "label": "15 May 2025"
      },
      {
        "value": "2025-05-15T13:30",
        "label": "15 May 13:30"
      },
      {
        "value": "2025-05-16T01:30",
        "label": "16 May 01:30"
      },
      {
        "value": "2025-05-16T13:30",
        "label": "16 May 13:30"
      },
      {
        "value": "2025-05-19T01:30",
        "label": "19 May 01:30"
      },
      {
        "value": "2025-05-19T13:30",
        "label": "19 May 13:30"
      },
      {
        "value": "2025-05-20T01:30",
        "label": "20 May 01:30"
      },
      {
        "value": "2025-05-20T13:30",
        "label": "20 May 13:30"
      },
      {
        "value": "2025-05-21T01:30",
        "label": "21 May 01:30"
      },
      {
        "value": "2025-05-21T13:30",
        "label": "21 May 13:30"
      },
      {
        "value": "2025-05-22T01:30",
        "label": "22 May 01:30"
      }
    ],
    "ylim": [
      1.1074,
      1.1424
    ],
    "yticks": [
      {
        "value": 1.14185,
        "label": "1.14185"
      },
      {
        "value": 1.13975,
        "label": "1.13975"
      },
      {
        "value": 1.13765,
        "label": "1.13765"
      },
      {
        "value": 1.13555,
        "label": "1.13555"
      },
      {
        "value": 1.1335,
        "label": "1.13350"
      },
      {
        "value": 1.1314,
        "label": "1.13140"
      },
      {
        "value": 1.12935,
        "label": "1.12935"
      },
      {
        "value": 1.12725,
        "label": "1.12725"
      },
      {
        "value": 1.1252,
        "label": "1.12520"
      },
      {
        "value": 1.1231,
        "label": "1.12310"
      },
      {
        "value": 1.12105,
        "label": "1.12105"
      },
      {
        "value": 1.11895,
        "label": "1.11895"
      },
      {
        "value": 1.1169,
        "label": "1.11690"
      },
      {
        "value": 1.1148,
        "label": "1.11480"
      },
      {
        "value": 1.11275,
        "label": "1.11275"
      },
      {
        "value": 1.11065,
        "label": "1.11065"
      },
      {
        "value": 1.1086,
        "label": "1.10860"
      }
    ]
  }
}
